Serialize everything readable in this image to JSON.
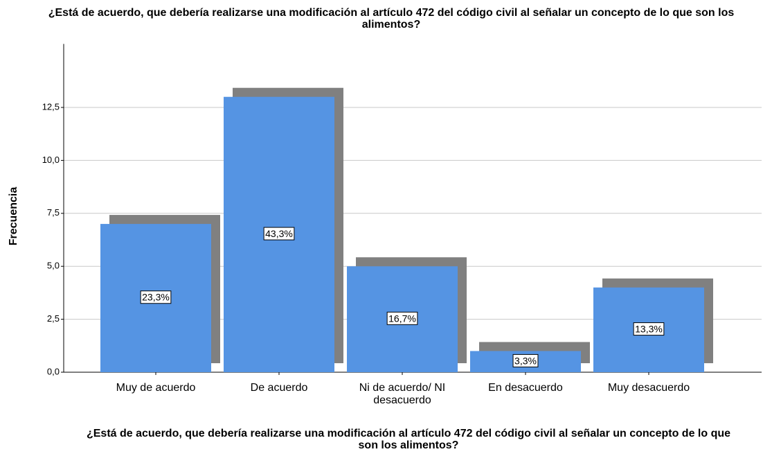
{
  "chart_data": {
    "type": "bar",
    "title": "¿Está de acuerdo, que debería realizarse una modificación al artículo 472 del código civil al señalar un concepto de lo que son los alimentos?",
    "x_label": "¿Está de acuerdo, que debería realizarse una modificación al artículo 472 del código civil al señalar un concepto de lo que son los alimentos?",
    "y_label": "Frecuencia",
    "categories": [
      "Muy de acuerdo",
      "De acuerdo",
      "Ni de acuerdo/ NI desacuerdo",
      "En desacuerdo",
      "Muy desacuerdo"
    ],
    "values": [
      7,
      13,
      5,
      1,
      4
    ],
    "percent_labels": [
      "23,3%",
      "43,3%",
      "16,7%",
      "3,3%",
      "13,3%"
    ],
    "color": "#5594e3",
    "shadow_color": "#808080",
    "ylim": [
      0,
      15.5
    ],
    "yticks": [
      {
        "value": 0,
        "label": "0,0"
      },
      {
        "value": 2.5,
        "label": "2,5"
      },
      {
        "value": 5,
        "label": "5,0"
      },
      {
        "value": 7.5,
        "label": "7,5"
      },
      {
        "value": 10,
        "label": "10,0"
      },
      {
        "value": 12.5,
        "label": "12,5"
      }
    ],
    "grid": true
  }
}
